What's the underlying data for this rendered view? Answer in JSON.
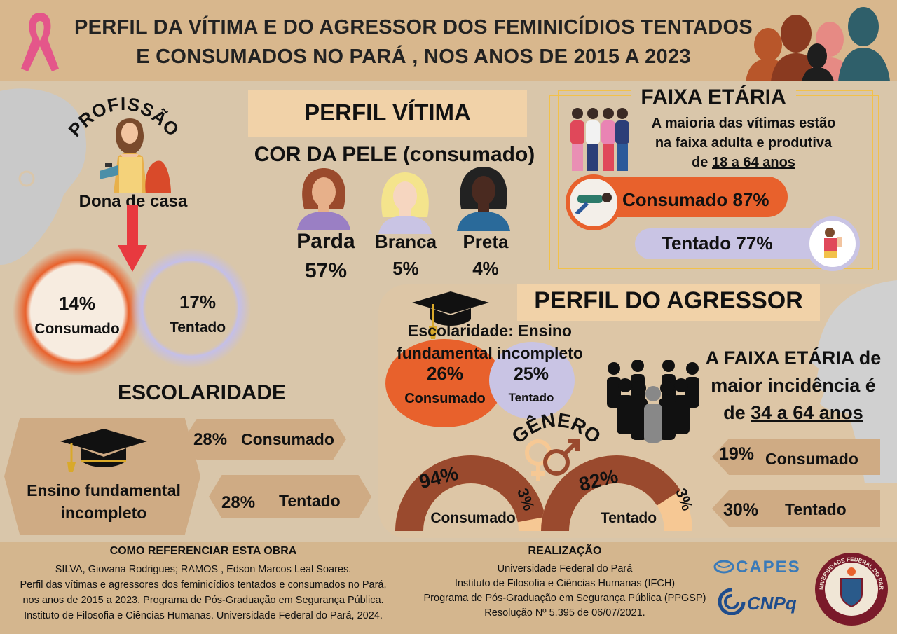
{
  "header": {
    "title_line1": "PERFIL DA VÍTIMA E DO AGRESSOR DOS FEMINICÍDIOS TENTADOS",
    "title_line2": "E CONSUMADOS NO PARÁ , NOS ANOS DE 2015 A 2023"
  },
  "victim": {
    "section_title": "PERFIL VÍTIMA",
    "profession": {
      "heading": "PROFISSÃO",
      "value": "Dona de casa",
      "consumado_pct": "14%",
      "consumado_label": "Consumado",
      "tentado_pct": "17%",
      "tentado_label": "Tentado"
    },
    "skin": {
      "heading": "COR DA PELE (consumado)",
      "items": [
        {
          "label": "Parda",
          "pct": "57%"
        },
        {
          "label": "Branca",
          "pct": "5%"
        },
        {
          "label": "Preta",
          "pct": "4%"
        }
      ]
    },
    "age": {
      "heading": "FAIXA ETÁRIA",
      "text1": "A maioria das vítimas estão",
      "text2": "na faixa adulta e produtiva",
      "text3_prefix": "de",
      "text3_range": "18 a 64 anos",
      "consumado": "Consumado 87%",
      "tentado": "Tentado 77%"
    },
    "education": {
      "heading": "ESCOLARIDADE",
      "level": "Ensino fundamental incompleto",
      "consumado_pct": "28%",
      "consumado_label": "Consumado",
      "tentado_pct": "28%",
      "tentado_label": "Tentado"
    }
  },
  "aggressor": {
    "section_title": "PERFIL DO AGRESSOR",
    "education": {
      "text": "Escolaridade:  Ensino fundamental incompleto",
      "consumado_pct": "26%",
      "consumado_label": "Consumado",
      "tentado_pct": "25%",
      "tentado_label": "Tentado"
    },
    "gender": {
      "heading": "GÊNERO",
      "consumado_main": "94%",
      "consumado_minor": "3%",
      "consumado_label": "Consumado",
      "tentado_main": "82%",
      "tentado_minor": "3%",
      "tentado_label": "Tentado",
      "consumado_main_value": 94,
      "tentado_main_value": 82
    },
    "age": {
      "text1": "A FAIXA ETÁRIA de",
      "text2": "maior incidência é",
      "text3_prefix": "de",
      "text3_range": "34 a 64 anos",
      "consumado_pct": "19%",
      "consumado_label": "Consumado",
      "tentado_pct": "30%",
      "tentado_label": "Tentado"
    }
  },
  "footer": {
    "ref_heading": "COMO REFERENCIAR ESTA OBRA",
    "ref_lines": [
      "SILVA, Giovana Rodrigues; RAMOS , Edson Marcos Leal Soares.",
      "Perfil das vítimas e agressores dos feminicídios tentados e consumados no Pará,",
      "nos anos de 2015 a 2023. Programa de Pós-Graduação em Segurança Pública.",
      "Instituto de Filosofia e Ciências Humanas. Universidade Federal do Pará, 2024."
    ],
    "real_heading": "REALIZAÇÃO",
    "real_lines": [
      "Universidade Federal do Pará",
      "Instituto de Filosofia e Ciências Humanas (IFCH)",
      "Programa de Pós-Graduação em Segurança Pública (PPGSP)",
      "Resolução Nº 5.395 de 06/07/2021."
    ],
    "logo_capes": "CAPES",
    "logo_cnpq": "CNPq",
    "seal_text": "UNIVERSIDADE FEDERAL DO PARÁ"
  },
  "colors": {
    "orange": "#e8612c",
    "lavender": "#c9c4e4",
    "brown": "#9a4a2e",
    "peach": "#f6c894",
    "tan": "#b89370"
  }
}
